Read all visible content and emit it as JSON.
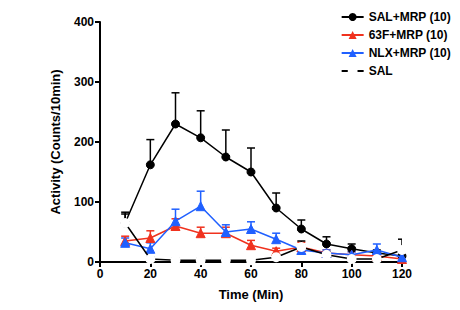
{
  "chart_data": {
    "type": "line",
    "x_label": "Time (Min)",
    "y_label": "Activity (Counts/10min)",
    "x": [
      10,
      20,
      30,
      40,
      50,
      60,
      70,
      80,
      90,
      100,
      110,
      120
    ],
    "xlim": [
      0,
      120
    ],
    "xticks": [
      0,
      20,
      40,
      60,
      80,
      100,
      120
    ],
    "ylim": [
      0,
      400
    ],
    "yticks": [
      0,
      100,
      200,
      300,
      400
    ],
    "grid": false,
    "legend": "upper right",
    "series": [
      {
        "name": "SAL+MRP (10)",
        "color": "#000000",
        "marker": "circle",
        "values": [
          65,
          162,
          230,
          207,
          175,
          150,
          90,
          55,
          30,
          22,
          15,
          10
        ],
        "errors": [
          18,
          42,
          52,
          45,
          45,
          40,
          25,
          15,
          12,
          8,
          5,
          5
        ]
      },
      {
        "name": "63F+MRP (10)",
        "color": "#f0321e",
        "marker": "triangle",
        "values": [
          35,
          40,
          60,
          48,
          48,
          28,
          18,
          25,
          15,
          12,
          10,
          5
        ],
        "errors": [
          8,
          12,
          12,
          10,
          10,
          8,
          5,
          8,
          5,
          5,
          5,
          3
        ]
      },
      {
        "name": "NLX+MRP (10)",
        "color": "#2060ff",
        "marker": "triangle",
        "values": [
          32,
          22,
          68,
          93,
          50,
          55,
          38,
          20,
          15,
          12,
          20,
          8
        ],
        "errors": [
          8,
          10,
          20,
          25,
          12,
          12,
          10,
          8,
          5,
          5,
          10,
          5
        ]
      },
      {
        "name": "SAL",
        "color": "#000000",
        "marker": "open_circle",
        "values": [
          65,
          5,
          3,
          3,
          3,
          3,
          8,
          25,
          12,
          5,
          5,
          20
        ],
        "errors": [
          15,
          3,
          3,
          3,
          3,
          3,
          5,
          10,
          5,
          3,
          3,
          18
        ]
      }
    ]
  }
}
